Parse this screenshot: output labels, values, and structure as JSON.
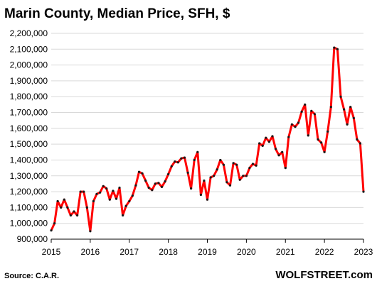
{
  "chart_data": {
    "type": "line",
    "title": "Marin County, Median Price, SFH, $",
    "xlabel": "",
    "ylabel": "",
    "ylim": [
      900000,
      2200000
    ],
    "y_ticks": [
      900000,
      1000000,
      1100000,
      1200000,
      1300000,
      1400000,
      1500000,
      1600000,
      1700000,
      1800000,
      1900000,
      2000000,
      2100000,
      2200000
    ],
    "y_tick_labels": [
      "900,000",
      "1,000,000",
      "1,100,000",
      "1,200,000",
      "1,300,000",
      "1,400,000",
      "1,500,000",
      "1,600,000",
      "1,700,000",
      "1,800,000",
      "1,900,000",
      "2,000,000",
      "2,100,000",
      "2,200,000"
    ],
    "x_ticks": [
      2015,
      2016,
      2017,
      2018,
      2019,
      2020,
      2021,
      2022,
      2023
    ],
    "x_tick_labels": [
      "2015",
      "2016",
      "2017",
      "2018",
      "2019",
      "2020",
      "2021",
      "2022",
      "2023"
    ],
    "grid": "horizontal",
    "line_color": "#ff0000",
    "marker_color": "#1a1a1a",
    "series": [
      {
        "start_year": 2015,
        "start_month": 1,
        "values": [
          955000,
          1000000,
          1140000,
          1100000,
          1150000,
          1100000,
          1050000,
          1075000,
          1050000,
          1200000,
          1200000,
          1100000,
          950000,
          1140000,
          1185000,
          1195000,
          1235000,
          1220000,
          1150000,
          1205000,
          1155000,
          1225000,
          1050000,
          1110000,
          1140000,
          1175000,
          1240000,
          1325000,
          1315000,
          1270000,
          1225000,
          1210000,
          1250000,
          1255000,
          1230000,
          1265000,
          1310000,
          1360000,
          1390000,
          1385000,
          1410000,
          1415000,
          1320000,
          1220000,
          1400000,
          1450000,
          1180000,
          1270000,
          1150000,
          1290000,
          1300000,
          1340000,
          1400000,
          1370000,
          1260000,
          1240000,
          1380000,
          1370000,
          1275000,
          1300000,
          1300000,
          1350000,
          1375000,
          1365000,
          1505000,
          1490000,
          1540000,
          1515000,
          1550000,
          1470000,
          1430000,
          1450000,
          1350000,
          1545000,
          1625000,
          1610000,
          1635000,
          1705000,
          1750000,
          1555000,
          1710000,
          1690000,
          1530000,
          1510000,
          1450000,
          1580000,
          1735000,
          2110000,
          2100000,
          1800000,
          1720000,
          1625000,
          1735000,
          1665000,
          1530000,
          1505000,
          1200000
        ]
      }
    ],
    "source": "Source: C.A.R.",
    "watermark": "WOLFSTREET.com"
  }
}
